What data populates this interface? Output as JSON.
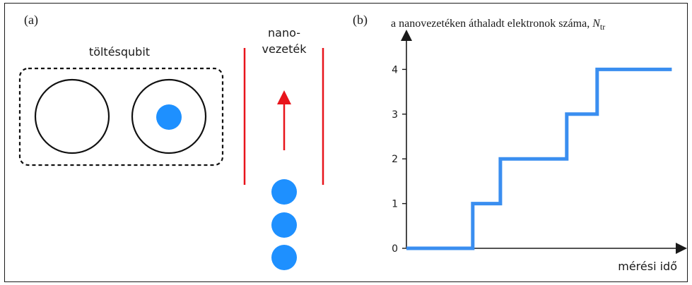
{
  "panel_a": {
    "label": "(a)",
    "qubit_label": "töltésqubit",
    "nanowire_label_line1": "nano-",
    "nanowire_label_line2": "vezeték",
    "electron_color": "#1E90FF",
    "wire_color": "#E8141B"
  },
  "panel_b": {
    "label": "(b)"
  },
  "chart_data": {
    "type": "line",
    "title": "",
    "ylabel_main": "a nanovezetéken áthaladt elektronok száma, ",
    "ylabel_symbol": "N",
    "ylabel_subscript": "tr",
    "xlabel": "mérési idő",
    "yticks": [
      "0",
      "1",
      "2",
      "3",
      "4"
    ],
    "ylim": [
      0,
      4.7
    ],
    "xlim": [
      0,
      1
    ],
    "grid": false,
    "line_color": "#3A8EF0",
    "series": [
      {
        "x": [
          0.0,
          0.24,
          0.24,
          0.34,
          0.34,
          0.58,
          0.58,
          0.69,
          0.69,
          0.96
        ],
        "y": [
          0,
          0,
          1,
          1,
          2,
          2,
          3,
          3,
          4,
          4
        ]
      }
    ]
  }
}
